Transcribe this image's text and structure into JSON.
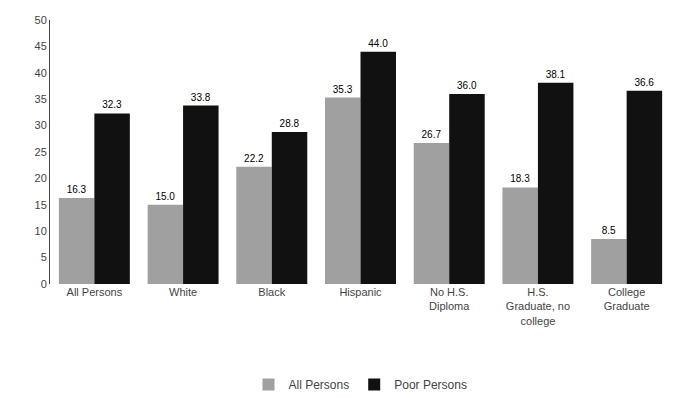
{
  "chart_data": {
    "type": "bar",
    "categories": [
      "All Persons",
      "White",
      "Black",
      "Hispanic",
      "No H.S.\nDiploma",
      "H.S.\nGraduate, no\ncollege",
      "College\nGraduate"
    ],
    "series": [
      {
        "name": "All Persons",
        "color": "#a0a0a0",
        "values": [
          16.3,
          15.0,
          22.2,
          35.3,
          26.7,
          18.3,
          8.5
        ],
        "value_labels": [
          "16.3",
          "15.0",
          "22.2",
          "35.3",
          "26.7",
          "18.3",
          "8.5"
        ]
      },
      {
        "name": "Poor Persons",
        "color": "#111111",
        "values": [
          32.3,
          33.8,
          28.8,
          44.0,
          36.0,
          38.1,
          36.6
        ],
        "value_labels": [
          "32.3",
          "33.8",
          "28.8",
          "44.0",
          "36.0",
          "38.1",
          "36.6"
        ]
      }
    ],
    "ylim": [
      0,
      50
    ],
    "yticks": [
      0,
      5,
      10,
      15,
      20,
      25,
      30,
      35,
      40,
      45,
      50
    ],
    "grid": false,
    "legend": "bottom",
    "data_labels": true
  }
}
